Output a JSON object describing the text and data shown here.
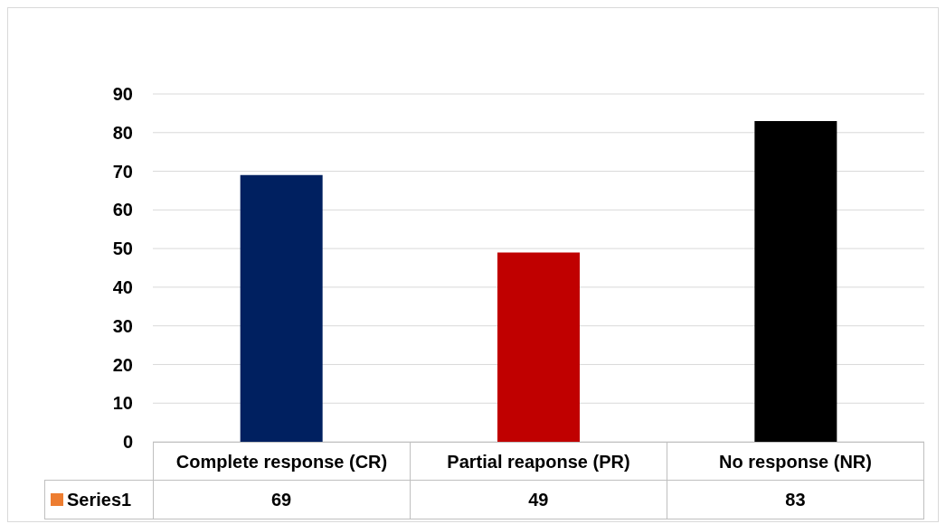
{
  "chart_data": {
    "type": "bar",
    "categories": [
      "Complete response (CR)",
      "Partial reaponse (PR)",
      "No response (NR)"
    ],
    "series": [
      {
        "name": "Series1",
        "color": "#ed7d31",
        "colors": [
          "#002060",
          "#c00000",
          "#000000"
        ],
        "values": [
          69,
          49,
          83
        ]
      }
    ],
    "ylim": [
      0,
      90
    ],
    "yticks": [
      0,
      10,
      20,
      30,
      40,
      50,
      60,
      70,
      80,
      90
    ],
    "grid": "y",
    "legend": "bottom",
    "data_labels": true
  }
}
